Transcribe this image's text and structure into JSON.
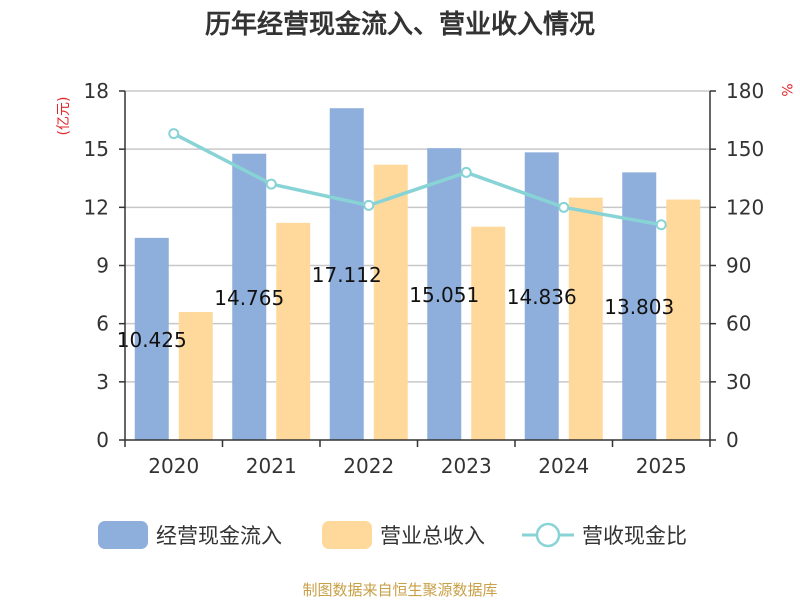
{
  "chart_data": {
    "type": "bar",
    "title": "历年经营现金流入、营业收入情况",
    "categories": [
      "2020",
      "2021",
      "2022",
      "2023",
      "2024",
      "2025"
    ],
    "series": [
      {
        "name": "经营现金流入",
        "kind": "bar",
        "axis": "left",
        "color": "#8eaedb",
        "values": [
          10.425,
          14.765,
          17.112,
          15.051,
          14.836,
          13.803
        ],
        "labels": [
          "10.425",
          "14.765",
          "17.112",
          "15.051",
          "14.836",
          "13.803"
        ]
      },
      {
        "name": "营业总收入",
        "kind": "bar",
        "axis": "left",
        "color": "#fed99b",
        "values": [
          6.6,
          11.2,
          14.2,
          11.0,
          12.5,
          12.4
        ]
      },
      {
        "name": "营收现金比",
        "kind": "line",
        "axis": "right",
        "color": "#88d3d6",
        "values": [
          158,
          132,
          121,
          138,
          120,
          111
        ]
      }
    ],
    "left_axis": {
      "unit": "(亿元)",
      "ylim": [
        0,
        18
      ],
      "ticks": [
        "0",
        "3",
        "6",
        "9",
        "12",
        "15",
        "18"
      ]
    },
    "right_axis": {
      "unit": "%",
      "ylim": [
        0,
        180
      ],
      "ticks": [
        "0",
        "30",
        "60",
        "90",
        "120",
        "150",
        "180"
      ]
    },
    "grid": true,
    "legend": "bottom"
  },
  "source_text": "制图数据来自恒生聚源数据库"
}
